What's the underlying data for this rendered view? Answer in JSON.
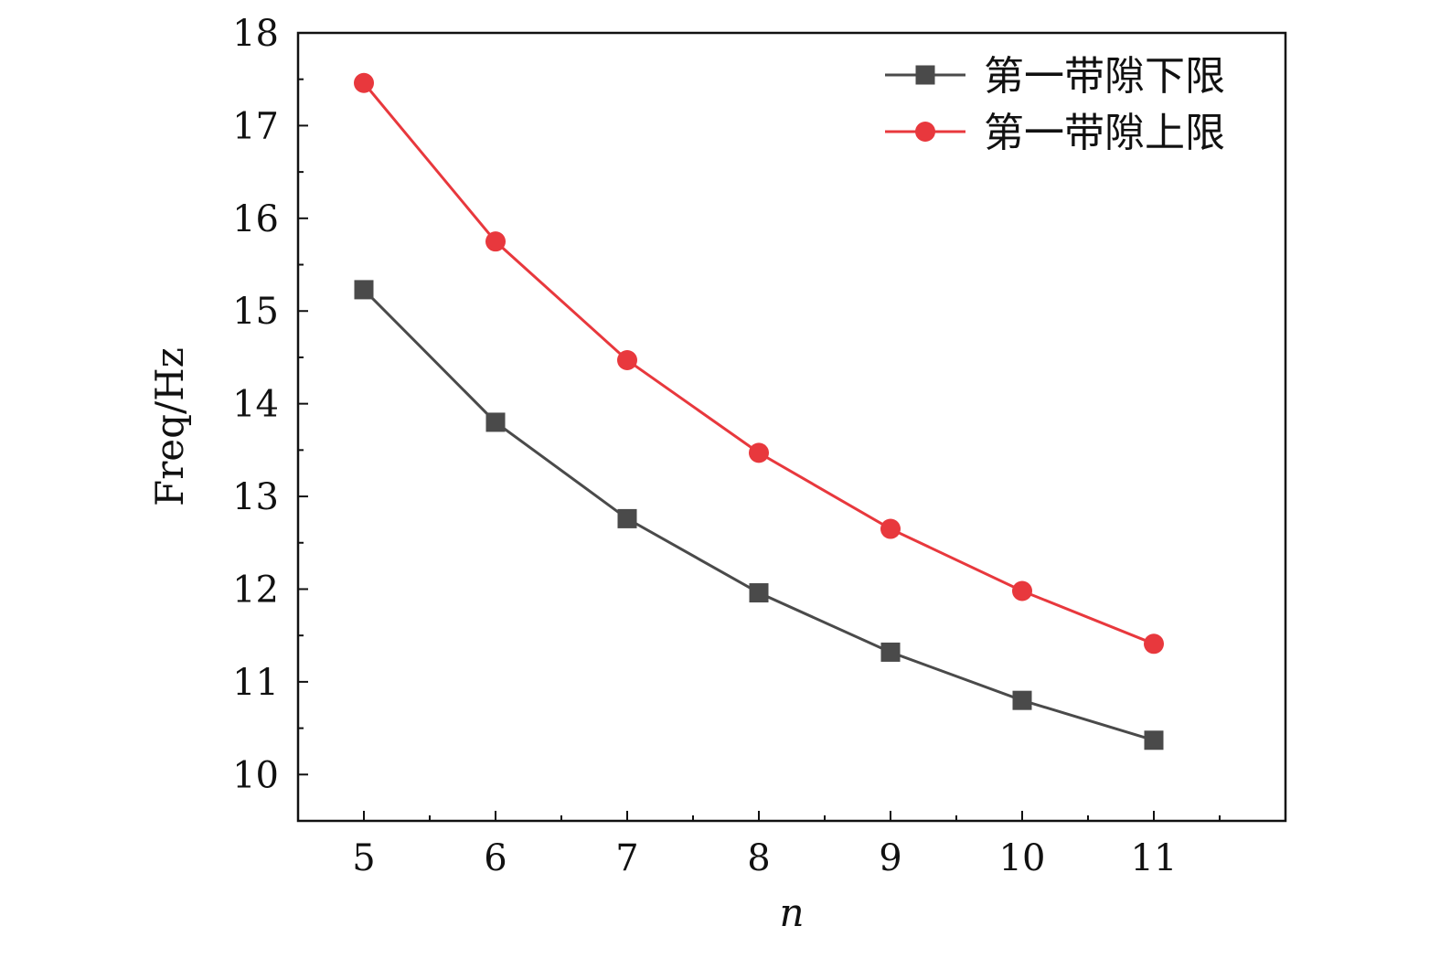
{
  "chart_data": {
    "type": "line",
    "title": "",
    "xlabel": "n",
    "ylabel": "Freq/Hz",
    "x": [
      5,
      6,
      7,
      8,
      9,
      10,
      11
    ],
    "xlim": [
      4.5,
      12
    ],
    "ylim": [
      9.5,
      18
    ],
    "x_ticks": [
      "5",
      "6",
      "7",
      "8",
      "9",
      "10",
      "11"
    ],
    "y_ticks": [
      "10",
      "11",
      "12",
      "13",
      "14",
      "15",
      "16",
      "17",
      "18"
    ],
    "grid": false,
    "legend_position": "top-right",
    "series": [
      {
        "name": "第一带隙下限",
        "values": [
          15.23,
          13.8,
          12.76,
          11.96,
          11.32,
          10.8,
          10.37
        ],
        "color": "#4a4a4a",
        "marker": "square"
      },
      {
        "name": "第一带隙上限",
        "values": [
          17.46,
          15.75,
          14.47,
          13.47,
          12.65,
          11.98,
          11.41
        ],
        "color": "#e8383d",
        "marker": "circle"
      }
    ]
  }
}
